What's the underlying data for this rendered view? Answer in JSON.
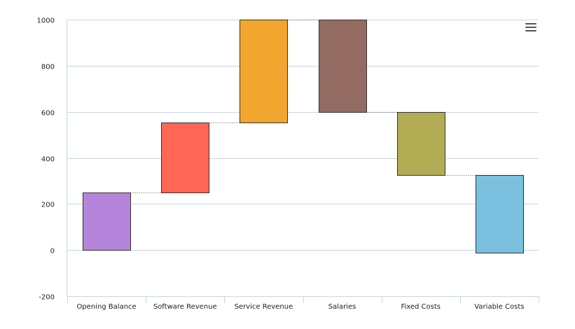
{
  "chart_data": {
    "type": "waterfall",
    "title": "",
    "xlabel": "",
    "ylabel": "",
    "ylim": [
      -200,
      1000
    ],
    "yticks": [
      1000,
      800,
      600,
      400,
      200,
      0,
      -200
    ],
    "categories": [
      "Opening Balance",
      "Software Revenue",
      "Service Revenue",
      "Salaries",
      "Fixed Costs",
      "Variable Costs"
    ],
    "bars": [
      {
        "name": "Opening Balance",
        "start": 0,
        "end": 250,
        "color": "#b585db"
      },
      {
        "name": "Software Revenue",
        "start": 250,
        "end": 552,
        "color": "#ff6655"
      },
      {
        "name": "Service Revenue",
        "start": 552,
        "end": 1000,
        "color": "#f2a630"
      },
      {
        "name": "Salaries",
        "start": 1000,
        "end": 600,
        "color": "#946b62"
      },
      {
        "name": "Fixed Costs",
        "start": 600,
        "end": 325,
        "color": "#b2ac54"
      },
      {
        "name": "Variable Costs",
        "start": 325,
        "end": -12,
        "color": "#7bc0de"
      }
    ],
    "gridlines": true,
    "connectors": true
  },
  "menu": {
    "icon": "menu-icon"
  }
}
